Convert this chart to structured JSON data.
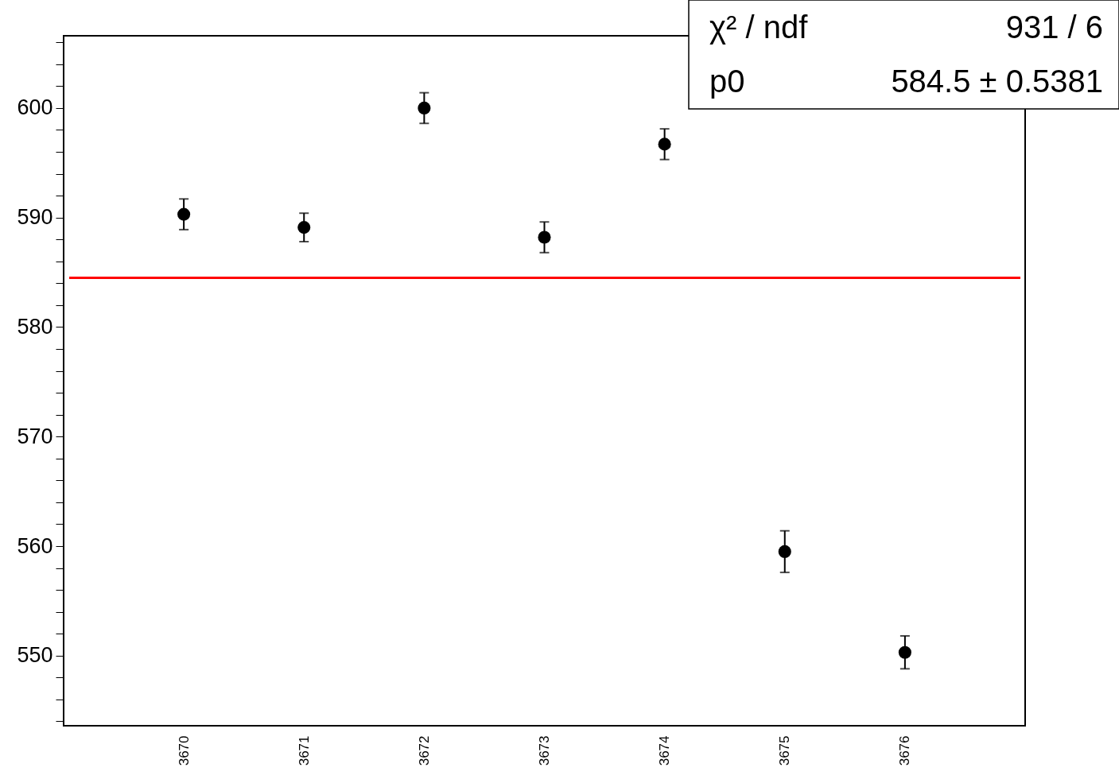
{
  "chart_data": {
    "type": "scatter",
    "categories": [
      "3670",
      "3671",
      "3672",
      "3673",
      "3674",
      "3675",
      "3676"
    ],
    "values": [
      590.3,
      589.1,
      600.0,
      588.2,
      596.7,
      559.5,
      550.3
    ],
    "errors": [
      1.4,
      1.3,
      1.4,
      1.4,
      1.4,
      1.9,
      1.5
    ],
    "color": "#000000",
    "marker": "circle",
    "grid": false,
    "ylim": [
      543.6,
      606.6
    ],
    "yticks": [
      {
        "value": 544,
        "label": null
      },
      {
        "value": 546,
        "label": null
      },
      {
        "value": 548,
        "label": null
      },
      550,
      {
        "value": 552,
        "label": null
      },
      {
        "value": 554,
        "label": null
      },
      {
        "value": 556,
        "label": null
      },
      {
        "value": 558,
        "label": null
      },
      560,
      {
        "value": 562,
        "label": null
      },
      {
        "value": 564,
        "label": null
      },
      {
        "value": 566,
        "label": null
      },
      {
        "value": 568,
        "label": null
      },
      570,
      {
        "value": 572,
        "label": null
      },
      {
        "value": 574,
        "label": null
      },
      {
        "value": 576,
        "label": null
      },
      {
        "value": 578,
        "label": null
      },
      580,
      {
        "value": 582,
        "label": null
      },
      {
        "value": 584,
        "label": null
      },
      {
        "value": 586,
        "label": null
      },
      {
        "value": 588,
        "label": null
      },
      590,
      {
        "value": 592,
        "label": null
      },
      {
        "value": 594,
        "label": null
      },
      {
        "value": 596,
        "label": null
      },
      {
        "value": 598,
        "label": null
      },
      600,
      {
        "value": 602,
        "label": null
      },
      {
        "value": 604,
        "label": null
      },
      {
        "value": 606,
        "label": null
      }
    ],
    "ref_lines": [
      {
        "axis": "y",
        "value": 584.5,
        "color": "#ff0000"
      }
    ],
    "annotations": [
      "χ² / ndf",
      "931 / 6",
      "p0",
      "584.5 ± 0.5381"
    ]
  }
}
